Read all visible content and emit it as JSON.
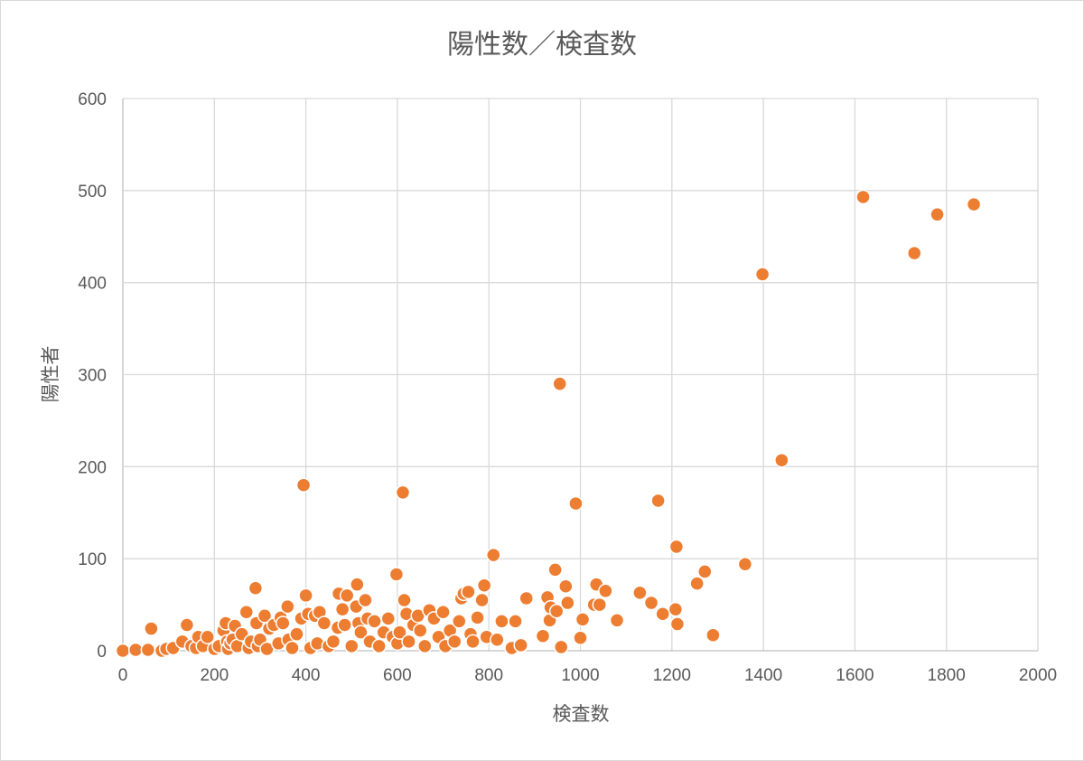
{
  "chart_data": {
    "type": "scatter",
    "title": "陽性数／検査数",
    "xlabel": "検査数",
    "ylabel": "陽性者",
    "xlim": [
      0,
      2000
    ],
    "ylim": [
      0,
      600
    ],
    "xticks": [
      "0",
      "200",
      "400",
      "600",
      "800",
      "1000",
      "1200",
      "1400",
      "1600",
      "1800",
      "2000"
    ],
    "yticks": [
      "0",
      "100",
      "200",
      "300",
      "400",
      "500",
      "600"
    ],
    "grid": true,
    "legend": "none",
    "marker_color": "#ED7D31",
    "series": [
      {
        "x": [
          0,
          28,
          55,
          62,
          85,
          95,
          110,
          130,
          140,
          150,
          160,
          165,
          175,
          185,
          200,
          210,
          220,
          225,
          228,
          230,
          235,
          240,
          245,
          250,
          260,
          270,
          275,
          280,
          290,
          292,
          295,
          300,
          310,
          315,
          320,
          330,
          340,
          345,
          350,
          360,
          362,
          370,
          380,
          390,
          395,
          400,
          405,
          410,
          420,
          425,
          430,
          440,
          450,
          460,
          470,
          472,
          480,
          485,
          490,
          500,
          510,
          512,
          515,
          520,
          530,
          535,
          540,
          550,
          560,
          570,
          580,
          590,
          598,
          600,
          605,
          612,
          615,
          620,
          625,
          635,
          645,
          650,
          660,
          670,
          680,
          690,
          700,
          705,
          715,
          725,
          735,
          740,
          745,
          755,
          760,
          765,
          775,
          785,
          790,
          795,
          810,
          818,
          828,
          850,
          858,
          870,
          882,
          918,
          928,
          933,
          935,
          945,
          948,
          955,
          958,
          968,
          972,
          990,
          1000,
          1005,
          1030,
          1035,
          1042,
          1055,
          1080,
          1130,
          1155,
          1170,
          1180,
          1208,
          1210,
          1212,
          1255,
          1272,
          1290,
          1360,
          1398,
          1440,
          1618,
          1730,
          1780,
          1860
        ],
        "y": [
          0,
          1,
          1,
          24,
          0,
          2,
          3,
          10,
          28,
          5,
          3,
          15,
          5,
          15,
          2,
          5,
          22,
          30,
          10,
          2,
          8,
          12,
          27,
          5,
          18,
          42,
          3,
          10,
          68,
          30,
          5,
          12,
          38,
          2,
          24,
          28,
          8,
          36,
          30,
          48,
          12,
          3,
          18,
          35,
          180,
          60,
          40,
          3,
          38,
          8,
          42,
          30,
          5,
          10,
          25,
          62,
          45,
          28,
          60,
          5,
          48,
          72,
          30,
          20,
          55,
          35,
          10,
          32,
          5,
          20,
          35,
          15,
          83,
          8,
          20,
          172,
          55,
          40,
          10,
          28,
          38,
          22,
          5,
          44,
          35,
          15,
          42,
          5,
          22,
          10,
          32,
          57,
          62,
          64,
          18,
          10,
          36,
          55,
          71,
          15,
          104,
          12,
          32,
          3,
          32,
          6,
          57,
          16,
          58,
          33,
          47,
          88,
          43,
          290,
          4,
          70,
          52,
          160,
          14,
          34,
          50,
          72,
          50,
          65,
          33,
          63,
          52,
          163,
          40,
          45,
          113,
          29,
          73,
          86,
          17,
          94,
          409,
          207,
          493,
          432,
          474,
          485
        ]
      }
    ]
  }
}
